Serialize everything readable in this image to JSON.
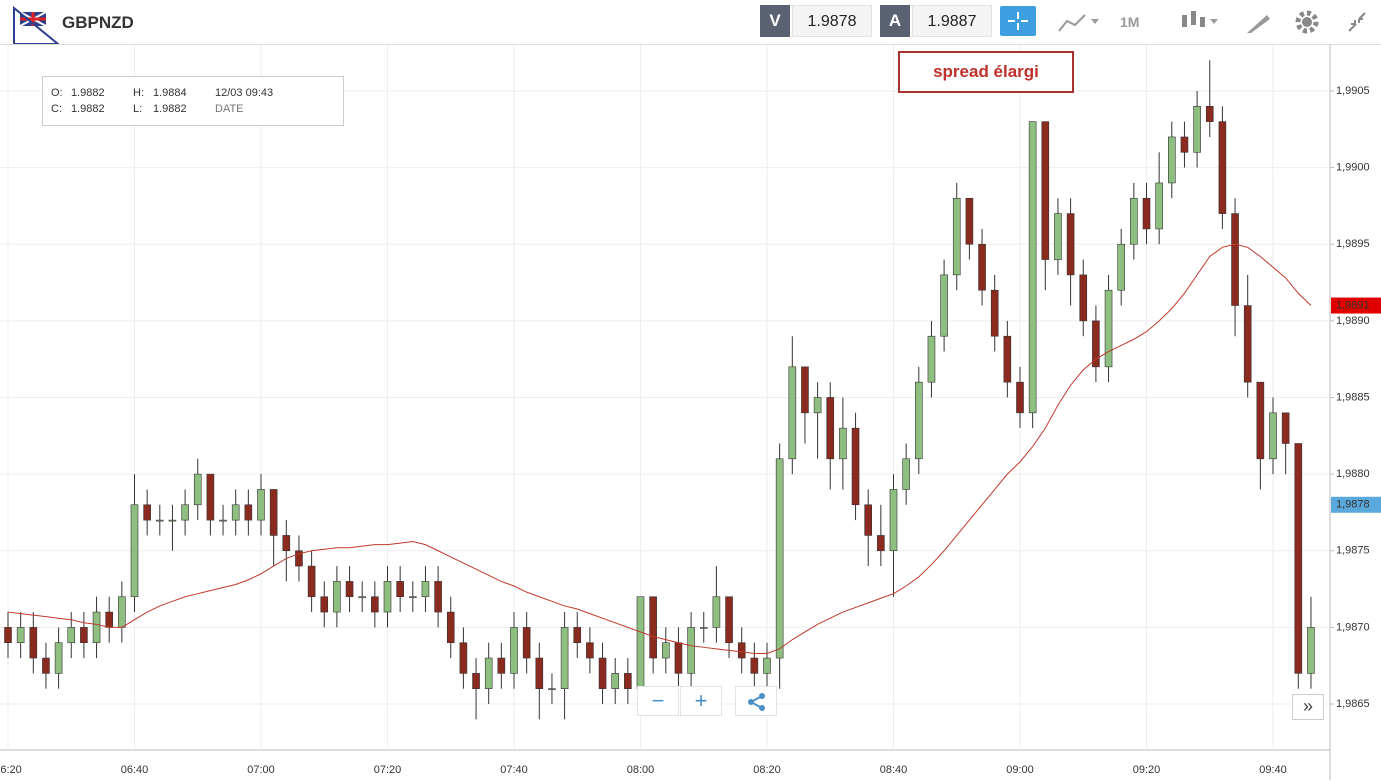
{
  "header": {
    "symbol": "GBPNZD",
    "bid_label": "V",
    "bid": "1.9878",
    "ask_label": "A",
    "ask": "1.9887",
    "timeframe": "1M"
  },
  "info": {
    "o_label": "O:",
    "o": "1.9882",
    "h_label": "H:",
    "h": "1.9884",
    "date": "12/03 09:43",
    "c_label": "C:",
    "c": "1.9882",
    "l_label": "L:",
    "l": "1.9882",
    "date_label": "DATE"
  },
  "annotation": "spread élargi",
  "controls": {
    "zoom_out": "−",
    "zoom_in": "+",
    "scroll": "»"
  },
  "chart_data": {
    "type": "candlestick",
    "x": [
      "06:20",
      "06:22",
      "06:24",
      "06:26",
      "06:28",
      "06:30",
      "06:32",
      "06:34",
      "06:36",
      "06:38",
      "06:40",
      "06:42",
      "06:44",
      "06:46",
      "06:48",
      "06:50",
      "06:52",
      "06:54",
      "06:56",
      "06:58",
      "07:00",
      "07:02",
      "07:04",
      "07:06",
      "07:08",
      "07:10",
      "07:12",
      "07:14",
      "07:16",
      "07:18",
      "07:20",
      "07:22",
      "07:24",
      "07:26",
      "07:28",
      "07:30",
      "07:32",
      "07:34",
      "07:36",
      "07:38",
      "07:40",
      "07:42",
      "07:44",
      "07:46",
      "07:48",
      "07:50",
      "07:52",
      "07:54",
      "07:56",
      "07:58",
      "08:00",
      "08:02",
      "08:04",
      "08:06",
      "08:08",
      "08:10",
      "08:12",
      "08:14",
      "08:16",
      "08:18",
      "08:20",
      "08:22",
      "08:24",
      "08:26",
      "08:28",
      "08:30",
      "08:32",
      "08:34",
      "08:36",
      "08:38",
      "08:40",
      "08:42",
      "08:44",
      "08:46",
      "08:48",
      "08:50",
      "08:52",
      "08:54",
      "08:56",
      "08:58",
      "09:00",
      "09:02",
      "09:04",
      "09:06",
      "09:08",
      "09:10",
      "09:12",
      "09:14",
      "09:16",
      "09:18",
      "09:20",
      "09:22",
      "09:24",
      "09:26",
      "09:28",
      "09:30",
      "09:32",
      "09:34",
      "09:36",
      "09:38",
      "09:40",
      "09:42",
      "09:44",
      "09:46"
    ],
    "open": [
      1.987,
      1.9869,
      1.987,
      1.9868,
      1.9867,
      1.9869,
      1.987,
      1.9869,
      1.9871,
      1.987,
      1.9872,
      1.9878,
      1.9877,
      1.9877,
      1.9877,
      1.9878,
      1.988,
      1.9877,
      1.9877,
      1.9878,
      1.9877,
      1.9879,
      1.9876,
      1.9875,
      1.9874,
      1.9872,
      1.9871,
      1.9873,
      1.9872,
      1.9872,
      1.9871,
      1.9873,
      1.9872,
      1.9872,
      1.9873,
      1.9871,
      1.9869,
      1.9867,
      1.9866,
      1.9868,
      1.9867,
      1.987,
      1.9868,
      1.9866,
      1.9866,
      1.987,
      1.9869,
      1.9868,
      1.9866,
      1.9867,
      1.9866,
      1.9872,
      1.9868,
      1.9869,
      1.9867,
      1.987,
      1.987,
      1.9872,
      1.9869,
      1.9868,
      1.9867,
      1.9868,
      1.9881,
      1.9887,
      1.9884,
      1.9885,
      1.9881,
      1.9883,
      1.9878,
      1.9876,
      1.9875,
      1.9879,
      1.9881,
      1.9886,
      1.9889,
      1.9893,
      1.9898,
      1.9895,
      1.9892,
      1.9889,
      1.9886,
      1.9884,
      1.9903,
      1.9894,
      1.9897,
      1.9893,
      1.989,
      1.9887,
      1.9892,
      1.9895,
      1.9898,
      1.9896,
      1.9899,
      1.9902,
      1.9901,
      1.9904,
      1.9903,
      1.9897,
      1.9891,
      1.9886,
      1.9881,
      1.9884,
      1.9882,
      1.9867
    ],
    "high": [
      1.9871,
      1.9871,
      1.9871,
      1.9869,
      1.987,
      1.9871,
      1.9871,
      1.9872,
      1.9872,
      1.9873,
      1.988,
      1.9879,
      1.9878,
      1.9878,
      1.9879,
      1.9881,
      1.988,
      1.9878,
      1.9879,
      1.9879,
      1.988,
      1.9879,
      1.9877,
      1.9876,
      1.9875,
      1.9873,
      1.9874,
      1.9874,
      1.9873,
      1.9873,
      1.9874,
      1.9874,
      1.9873,
      1.9874,
      1.9874,
      1.9872,
      1.987,
      1.9868,
      1.9869,
      1.9869,
      1.9871,
      1.9871,
      1.9869,
      1.9867,
      1.9871,
      1.9871,
      1.987,
      1.9869,
      1.9868,
      1.9868,
      1.9872,
      1.9872,
      1.987,
      1.987,
      1.9871,
      1.9871,
      1.9874,
      1.9872,
      1.987,
      1.9869,
      1.9869,
      1.9882,
      1.9889,
      1.9887,
      1.9886,
      1.9886,
      1.9885,
      1.9884,
      1.9879,
      1.9878,
      1.988,
      1.9882,
      1.9887,
      1.989,
      1.9894,
      1.9899,
      1.9898,
      1.9896,
      1.9893,
      1.989,
      1.9887,
      1.9903,
      1.9903,
      1.9898,
      1.9898,
      1.9894,
      1.9891,
      1.9893,
      1.9896,
      1.9899,
      1.9899,
      1.9901,
      1.9903,
      1.9903,
      1.9905,
      1.9907,
      1.9904,
      1.9898,
      1.9893,
      1.9886,
      1.9885,
      1.9884,
      1.9882,
      1.9872
    ],
    "low": [
      1.9868,
      1.9868,
      1.9867,
      1.9866,
      1.9866,
      1.9868,
      1.9868,
      1.9868,
      1.9869,
      1.9869,
      1.9871,
      1.9876,
      1.9876,
      1.9875,
      1.9876,
      1.9877,
      1.9876,
      1.9876,
      1.9876,
      1.9876,
      1.9876,
      1.9874,
      1.9873,
      1.9873,
      1.9871,
      1.987,
      1.987,
      1.9871,
      1.9871,
      1.987,
      1.987,
      1.9871,
      1.9871,
      1.9871,
      1.987,
      1.9868,
      1.9866,
      1.9864,
      1.9865,
      1.9866,
      1.9866,
      1.9867,
      1.9864,
      1.9865,
      1.9864,
      1.9868,
      1.9867,
      1.9865,
      1.9865,
      1.9865,
      1.9865,
      1.9867,
      1.9867,
      1.9866,
      1.9866,
      1.9869,
      1.9869,
      1.9868,
      1.9867,
      1.9866,
      1.9866,
      1.9866,
      1.988,
      1.9882,
      1.9881,
      1.9879,
      1.9879,
      1.9877,
      1.9874,
      1.9874,
      1.9872,
      1.9878,
      1.988,
      1.9885,
      1.9888,
      1.9892,
      1.9894,
      1.9891,
      1.9888,
      1.9885,
      1.9883,
      1.9883,
      1.9892,
      1.9893,
      1.9891,
      1.9889,
      1.9886,
      1.9886,
      1.9891,
      1.9894,
      1.9895,
      1.9895,
      1.9898,
      1.99,
      1.99,
      1.9902,
      1.9896,
      1.9889,
      1.9885,
      1.9879,
      1.988,
      1.988,
      1.9866,
      1.9866
    ],
    "close": [
      1.9869,
      1.987,
      1.9868,
      1.9867,
      1.9869,
      1.987,
      1.9869,
      1.9871,
      1.987,
      1.9872,
      1.9878,
      1.9877,
      1.9877,
      1.9877,
      1.9878,
      1.988,
      1.9877,
      1.9877,
      1.9878,
      1.9877,
      1.9879,
      1.9876,
      1.9875,
      1.9874,
      1.9872,
      1.9871,
      1.9873,
      1.9872,
      1.9872,
      1.9871,
      1.9873,
      1.9872,
      1.9872,
      1.9873,
      1.9871,
      1.9869,
      1.9867,
      1.9866,
      1.9868,
      1.9867,
      1.987,
      1.9868,
      1.9866,
      1.9866,
      1.987,
      1.9869,
      1.9868,
      1.9866,
      1.9867,
      1.9866,
      1.9872,
      1.9868,
      1.9869,
      1.9867,
      1.987,
      1.987,
      1.9872,
      1.9869,
      1.9868,
      1.9867,
      1.9868,
      1.9881,
      1.9887,
      1.9884,
      1.9885,
      1.9881,
      1.9883,
      1.9878,
      1.9876,
      1.9875,
      1.9879,
      1.9881,
      1.9886,
      1.9889,
      1.9893,
      1.9898,
      1.9895,
      1.9892,
      1.9889,
      1.9886,
      1.9884,
      1.9903,
      1.9894,
      1.9897,
      1.9893,
      1.989,
      1.9887,
      1.9892,
      1.9895,
      1.9898,
      1.9896,
      1.9899,
      1.9902,
      1.9901,
      1.9904,
      1.9903,
      1.9897,
      1.9891,
      1.9886,
      1.9881,
      1.9884,
      1.9882,
      1.9867,
      1.987
    ],
    "up_color": "#8fbf80",
    "down_color": "#8b2a1f",
    "ma": {
      "color": "#c0392b",
      "values": [
        1.9871,
        1.98709,
        1.98708,
        1.98707,
        1.98706,
        1.98705,
        1.98703,
        1.98702,
        1.987,
        1.987,
        1.98705,
        1.9871,
        1.98714,
        1.98717,
        1.9872,
        1.98722,
        1.98724,
        1.98726,
        1.98728,
        1.98731,
        1.98735,
        1.9874,
        1.98745,
        1.98748,
        1.9875,
        1.98751,
        1.98752,
        1.98752,
        1.98753,
        1.98754,
        1.98754,
        1.98755,
        1.98756,
        1.98754,
        1.9875,
        1.98746,
        1.98742,
        1.98738,
        1.98734,
        1.9873,
        1.98727,
        1.98723,
        1.9872,
        1.98717,
        1.98714,
        1.98712,
        1.98709,
        1.98706,
        1.98703,
        1.987,
        1.98697,
        1.98694,
        1.98692,
        1.9869,
        1.98688,
        1.98687,
        1.98686,
        1.98685,
        1.98684,
        1.98683,
        1.98683,
        1.98686,
        1.98692,
        1.98697,
        1.98702,
        1.98706,
        1.9871,
        1.98713,
        1.98716,
        1.98719,
        1.98722,
        1.98727,
        1.98733,
        1.98741,
        1.9875,
        1.9876,
        1.9877,
        1.9878,
        1.9879,
        1.988,
        1.98808,
        1.98818,
        1.9883,
        1.98845,
        1.98858,
        1.98868,
        1.98875,
        1.9888,
        1.98884,
        1.98888,
        1.98893,
        1.989,
        1.98908,
        1.98918,
        1.9893,
        1.98942,
        1.98948,
        1.9895,
        1.98948,
        1.98942,
        1.98935,
        1.98928,
        1.98918,
        1.9891
      ]
    },
    "ylim": [
      1.9862,
      1.9908
    ],
    "yticks": [
      {
        "value": 1.9865,
        "label": "1,9865"
      },
      {
        "value": 1.987,
        "label": "1,9870"
      },
      {
        "value": 1.9875,
        "label": "1,9875"
      },
      {
        "value": 1.988,
        "label": "1,9880"
      },
      {
        "value": 1.9885,
        "label": "1,9885"
      },
      {
        "value": 1.989,
        "label": "1,9890"
      },
      {
        "value": 1.9895,
        "label": "1,9895"
      },
      {
        "value": 1.99,
        "label": "1,9900"
      },
      {
        "value": 1.9905,
        "label": "1,9905"
      }
    ],
    "price_tags": [
      {
        "value": 1.9891,
        "label": "1,9891",
        "color": "#e00000"
      },
      {
        "value": 1.9878,
        "label": "1,9878",
        "color": "#5aa9dc"
      }
    ],
    "grid": true
  }
}
